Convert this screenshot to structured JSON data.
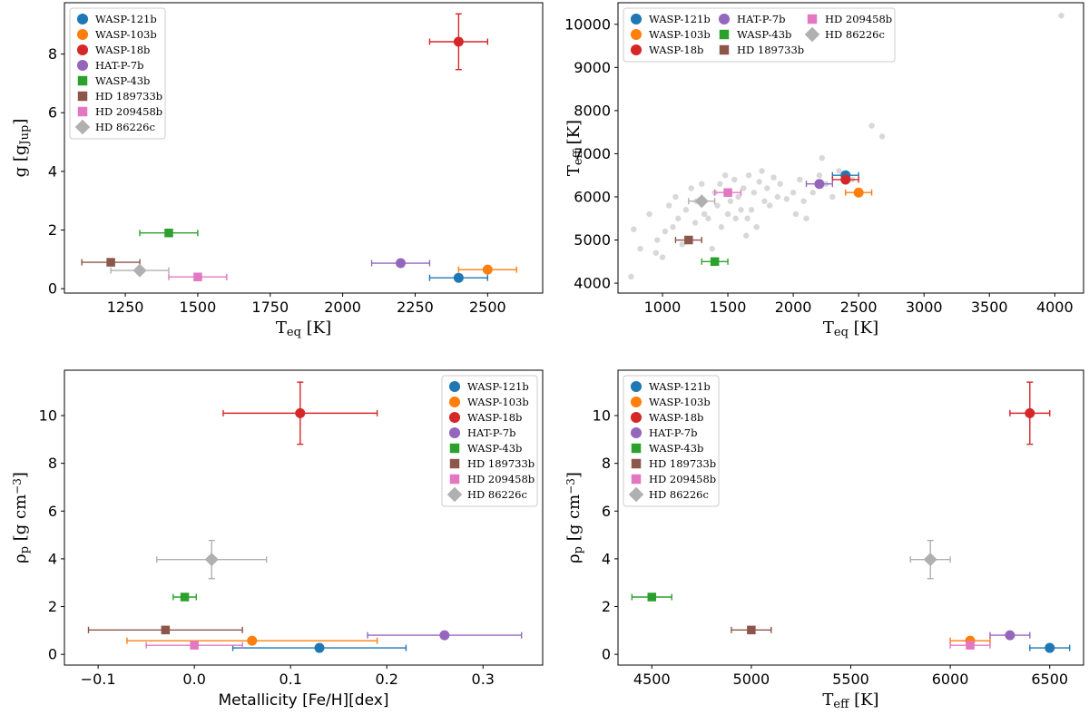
{
  "colors": {
    "WASP-121b": "#1f77b4",
    "WASP-103b": "#ff7f0e",
    "WASP-18b": "#d62728",
    "HAT-P-7b": "#9467bd",
    "WASP-43b": "#2ca02c",
    "HD 189733b": "#8c564b",
    "HD 209458b": "#e377c2",
    "HD 86226c": "#b0b0b0",
    "background": "#d8d8d8"
  },
  "markers": {
    "WASP-121b": "circle",
    "WASP-103b": "circle",
    "WASP-18b": "circle",
    "HAT-P-7b": "circle",
    "WASP-43b": "square",
    "HD 189733b": "square",
    "HD 209458b": "square",
    "HD 86226c": "diamond"
  },
  "chart_data": [
    {
      "type": "scatter",
      "panel": "top-left",
      "xlabel": "Teq [K]",
      "ylabel": "g [gJup]",
      "xlim": [
        1040,
        2690
      ],
      "ylim": [
        -0.15,
        9.75
      ],
      "xticks": [
        1250,
        1500,
        1750,
        2000,
        2250,
        2500
      ],
      "yticks": [
        0,
        2,
        4,
        6,
        8
      ],
      "legend_position": "top-left",
      "legend_columns": 1,
      "series": [
        {
          "name": "WASP-121b",
          "x": 2400,
          "y": 0.37,
          "xerr": 100,
          "yerr": 0
        },
        {
          "name": "WASP-103b",
          "x": 2500,
          "y": 0.65,
          "xerr": 100,
          "yerr": 0
        },
        {
          "name": "WASP-18b",
          "x": 2400,
          "y": 8.42,
          "xerr": 100,
          "yerr": 0.95
        },
        {
          "name": "HAT-P-7b",
          "x": 2200,
          "y": 0.87,
          "xerr": 100,
          "yerr": 0
        },
        {
          "name": "WASP-43b",
          "x": 1400,
          "y": 1.9,
          "xerr": 100,
          "yerr": 0
        },
        {
          "name": "HD 189733b",
          "x": 1200,
          "y": 0.9,
          "xerr": 100,
          "yerr": 0
        },
        {
          "name": "HD 209458b",
          "x": 1500,
          "y": 0.4,
          "xerr": 100,
          "yerr": 0
        },
        {
          "name": "HD 86226c",
          "x": 1300,
          "y": 0.62,
          "xerr": 100,
          "yerr": 0
        }
      ]
    },
    {
      "type": "scatter",
      "panel": "top-right",
      "xlabel": "Teq [K]",
      "ylabel": "Teff [K]",
      "xlim": [
        660,
        4220
      ],
      "ylim": [
        3770,
        10500
      ],
      "xticks": [
        1000,
        1500,
        2000,
        2500,
        3000,
        3500,
        4000
      ],
      "yticks": [
        4000,
        5000,
        6000,
        7000,
        8000,
        9000,
        10000
      ],
      "legend_position": "top-left",
      "legend_columns": 3,
      "background_points": [
        [
          760,
          4150
        ],
        [
          780,
          5250
        ],
        [
          830,
          4800
        ],
        [
          900,
          5600
        ],
        [
          950,
          4700
        ],
        [
          960,
          5000
        ],
        [
          1000,
          4600
        ],
        [
          1020,
          5200
        ],
        [
          1050,
          5800
        ],
        [
          1080,
          5300
        ],
        [
          1100,
          6000
        ],
        [
          1120,
          5500
        ],
        [
          1150,
          4900
        ],
        [
          1180,
          5700
        ],
        [
          1220,
          6200
        ],
        [
          1250,
          5400
        ],
        [
          1260,
          5900
        ],
        [
          1300,
          6300
        ],
        [
          1320,
          5600
        ],
        [
          1350,
          5500
        ],
        [
          1380,
          4800
        ],
        [
          1400,
          6100
        ],
        [
          1420,
          5800
        ],
        [
          1440,
          6300
        ],
        [
          1450,
          5300
        ],
        [
          1480,
          6500
        ],
        [
          1500,
          5600
        ],
        [
          1520,
          5900
        ],
        [
          1550,
          6400
        ],
        [
          1560,
          5500
        ],
        [
          1580,
          6000
        ],
        [
          1600,
          5700
        ],
        [
          1620,
          6200
        ],
        [
          1640,
          5100
        ],
        [
          1650,
          5500
        ],
        [
          1660,
          6500
        ],
        [
          1680,
          5700
        ],
        [
          1700,
          6100
        ],
        [
          1720,
          5300
        ],
        [
          1740,
          6350
        ],
        [
          1760,
          6600
        ],
        [
          1780,
          5900
        ],
        [
          1800,
          6200
        ],
        [
          1820,
          5800
        ],
        [
          1850,
          6450
        ],
        [
          1880,
          6000
        ],
        [
          1900,
          6300
        ],
        [
          1950,
          5950
        ],
        [
          2000,
          6100
        ],
        [
          2020,
          5600
        ],
        [
          2050,
          6400
        ],
        [
          2080,
          5900
        ],
        [
          2100,
          5500
        ],
        [
          2150,
          6100
        ],
        [
          2200,
          6500
        ],
        [
          2220,
          6900
        ],
        [
          2250,
          6300
        ],
        [
          2300,
          6000
        ],
        [
          2350,
          6600
        ],
        [
          2450,
          6400
        ],
        [
          2600,
          7650
        ],
        [
          2680,
          7400
        ],
        [
          4050,
          10200
        ]
      ],
      "series": [
        {
          "name": "WASP-121b",
          "x": 2400,
          "y": 6500,
          "xerr": 100,
          "yerr": 0
        },
        {
          "name": "WASP-103b",
          "x": 2500,
          "y": 6100,
          "xerr": 100,
          "yerr": 0
        },
        {
          "name": "WASP-18b",
          "x": 2400,
          "y": 6400,
          "xerr": 100,
          "yerr": 0
        },
        {
          "name": "HAT-P-7b",
          "x": 2200,
          "y": 6300,
          "xerr": 100,
          "yerr": 0
        },
        {
          "name": "WASP-43b",
          "x": 1400,
          "y": 4500,
          "xerr": 100,
          "yerr": 0
        },
        {
          "name": "HD 189733b",
          "x": 1200,
          "y": 5000,
          "xerr": 100,
          "yerr": 0
        },
        {
          "name": "HD 209458b",
          "x": 1500,
          "y": 6100,
          "xerr": 100,
          "yerr": 0
        },
        {
          "name": "HD 86226c",
          "x": 1300,
          "y": 5900,
          "xerr": 100,
          "yerr": 0
        }
      ]
    },
    {
      "type": "scatter",
      "panel": "bottom-left",
      "xlabel": "Metallicity [Fe/H][dex]",
      "ylabel": "ρp [g cm−3]",
      "xlim": [
        -0.135,
        0.362
      ],
      "ylim": [
        -0.45,
        11.9
      ],
      "xticks": [
        -0.1,
        0.0,
        0.1,
        0.2,
        0.3
      ],
      "xtick_labels": [
        "−0.1",
        "0.0",
        "0.1",
        "0.2",
        "0.3"
      ],
      "yticks": [
        0,
        2,
        4,
        6,
        8,
        10
      ],
      "legend_position": "top-right",
      "legend_columns": 1,
      "series": [
        {
          "name": "WASP-121b",
          "x": 0.13,
          "y": 0.27,
          "xerr": 0.09,
          "yerr": 0
        },
        {
          "name": "WASP-103b",
          "x": 0.06,
          "y": 0.57,
          "xerr": 0.13,
          "yerr": 0
        },
        {
          "name": "WASP-18b",
          "x": 0.11,
          "y": 10.1,
          "xerr": 0.08,
          "yerr": 1.3
        },
        {
          "name": "HAT-P-7b",
          "x": 0.26,
          "y": 0.8,
          "xerr": 0.08,
          "yerr": 0
        },
        {
          "name": "WASP-43b",
          "x": -0.01,
          "y": 2.4,
          "xerr": 0.012,
          "yerr": 0
        },
        {
          "name": "HD 189733b",
          "x": -0.03,
          "y": 1.02,
          "xerr": 0.08,
          "yerr": 0
        },
        {
          "name": "HD 209458b",
          "x": 0.0,
          "y": 0.38,
          "xerr": 0.05,
          "yerr": 0
        },
        {
          "name": "HD 86226c",
          "x": 0.018,
          "y": 3.97,
          "xerr": 0.057,
          "yerr": 0.8
        }
      ]
    },
    {
      "type": "scatter",
      "panel": "bottom-right",
      "xlabel": "Teff [K]",
      "ylabel": "ρp [g cm−3]",
      "xlim": [
        4330,
        6670
      ],
      "ylim": [
        -0.45,
        11.9
      ],
      "xticks": [
        4500,
        5000,
        5500,
        6000,
        6500
      ],
      "yticks": [
        0,
        2,
        4,
        6,
        8,
        10
      ],
      "legend_position": "top-left",
      "legend_columns": 1,
      "series": [
        {
          "name": "WASP-121b",
          "x": 6500,
          "y": 0.27,
          "xerr": 100,
          "yerr": 0
        },
        {
          "name": "WASP-103b",
          "x": 6100,
          "y": 0.57,
          "xerr": 100,
          "yerr": 0
        },
        {
          "name": "WASP-18b",
          "x": 6400,
          "y": 10.1,
          "xerr": 100,
          "yerr": 1.3
        },
        {
          "name": "HAT-P-7b",
          "x": 6300,
          "y": 0.8,
          "xerr": 100,
          "yerr": 0
        },
        {
          "name": "WASP-43b",
          "x": 4500,
          "y": 2.4,
          "xerr": 100,
          "yerr": 0
        },
        {
          "name": "HD 189733b",
          "x": 5000,
          "y": 1.02,
          "xerr": 100,
          "yerr": 0
        },
        {
          "name": "HD 209458b",
          "x": 6100,
          "y": 0.38,
          "xerr": 100,
          "yerr": 0
        },
        {
          "name": "HD 86226c",
          "x": 5900,
          "y": 3.97,
          "xerr": 100,
          "yerr": 0.8
        }
      ]
    }
  ]
}
